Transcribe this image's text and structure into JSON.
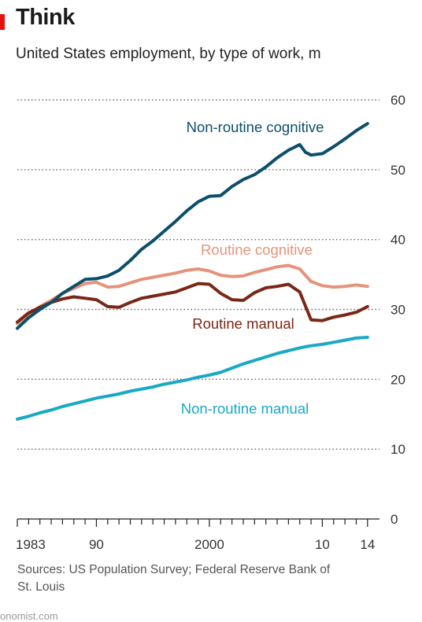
{
  "title": "Think",
  "subtitle": "United States employment, by type of work, m",
  "source": "Sources: US Population Survey; Federal Reserve Bank of St. Louis",
  "credit": "onomist.com",
  "chart_data": {
    "type": "line",
    "title": "Think",
    "subtitle": "United States employment, by type of work, m",
    "x_range": [
      1983,
      2014.5
    ],
    "ylim": [
      0,
      60
    ],
    "y_ticks": [
      {
        "value": 0,
        "label": "0"
      },
      {
        "value": 10,
        "label": "10"
      },
      {
        "value": 20,
        "label": "20"
      },
      {
        "value": 30,
        "label": "30"
      },
      {
        "value": 40,
        "label": "40"
      },
      {
        "value": 50,
        "label": "50"
      },
      {
        "value": 60,
        "label": "60"
      }
    ],
    "y_axis_side": "right",
    "grid": "dotted horizontal",
    "x_tick_labels": [
      {
        "value": 1983,
        "label": "1983"
      },
      {
        "value": 1990,
        "label": "90"
      },
      {
        "value": 2000,
        "label": "2000"
      },
      {
        "value": 2010,
        "label": "10"
      },
      {
        "value": 2014,
        "label": "14"
      }
    ],
    "series": [
      {
        "name": "Non-routine cognitive",
        "color": "#0c4f6b",
        "x": [
          1983,
          1984,
          1985,
          1986,
          1987,
          1988,
          1989,
          1990,
          1991,
          1992,
          1993,
          1994,
          1995,
          1996,
          1997,
          1998,
          1999,
          2000,
          2001,
          2002,
          2003,
          2004,
          2005,
          2006,
          2007,
          2008,
          2008.5,
          2009,
          2010,
          2011,
          2012,
          2013,
          2014
        ],
        "values": [
          27.3,
          28.8,
          30.0,
          31.0,
          32.3,
          33.3,
          34.3,
          34.4,
          34.8,
          35.6,
          37.0,
          38.6,
          39.8,
          41.2,
          42.6,
          44.1,
          45.4,
          46.2,
          46.3,
          47.6,
          48.6,
          49.3,
          50.4,
          51.7,
          52.8,
          53.6,
          52.5,
          52.1,
          52.3,
          53.3,
          54.4,
          55.6,
          56.6
        ]
      },
      {
        "name": "Routine cognitive",
        "color": "#e5937a",
        "x": [
          1983,
          1984,
          1985,
          1986,
          1987,
          1988,
          1989,
          1990,
          1991,
          1992,
          1993,
          1994,
          1995,
          1996,
          1997,
          1998,
          1999,
          2000,
          2001,
          2002,
          2003,
          2004,
          2005,
          2006,
          2007,
          2008,
          2009,
          2010,
          2011,
          2012,
          2013,
          2014
        ],
        "values": [
          28.0,
          29.3,
          30.4,
          31.3,
          32.3,
          33.0,
          33.7,
          33.9,
          33.2,
          33.3,
          33.8,
          34.3,
          34.6,
          34.9,
          35.2,
          35.6,
          35.8,
          35.5,
          34.9,
          34.7,
          34.8,
          35.3,
          35.7,
          36.1,
          36.3,
          35.8,
          34.0,
          33.4,
          33.2,
          33.3,
          33.5,
          33.3
        ]
      },
      {
        "name": "Routine manual",
        "color": "#7a2717",
        "x": [
          1983,
          1984,
          1985,
          1986,
          1987,
          1988,
          1989,
          1990,
          1991,
          1992,
          1993,
          1994,
          1995,
          1996,
          1997,
          1998,
          1999,
          2000,
          2001,
          2002,
          2003,
          2004,
          2005,
          2006,
          2007,
          2008,
          2009,
          2010,
          2011,
          2012,
          2013,
          2014
        ],
        "values": [
          28.2,
          29.5,
          30.3,
          31.0,
          31.5,
          31.8,
          31.6,
          31.4,
          30.4,
          30.3,
          31.0,
          31.6,
          31.9,
          32.2,
          32.5,
          33.1,
          33.7,
          33.6,
          32.3,
          31.4,
          31.3,
          32.4,
          33.1,
          33.3,
          33.6,
          32.5,
          28.5,
          28.4,
          28.9,
          29.2,
          29.6,
          30.4
        ]
      },
      {
        "name": "Non-routine manual",
        "color": "#1aa9c4",
        "x": [
          1983,
          1984,
          1985,
          1986,
          1987,
          1988,
          1989,
          1990,
          1991,
          1992,
          1993,
          1994,
          1995,
          1996,
          1997,
          1998,
          1999,
          2000,
          2001,
          2002,
          2003,
          2004,
          2005,
          2006,
          2007,
          2008,
          2009,
          2010,
          2011,
          2012,
          2013,
          2014
        ],
        "values": [
          14.3,
          14.7,
          15.2,
          15.6,
          16.1,
          16.5,
          16.9,
          17.3,
          17.6,
          17.9,
          18.3,
          18.6,
          18.9,
          19.3,
          19.6,
          19.9,
          20.3,
          20.6,
          21.0,
          21.6,
          22.2,
          22.7,
          23.2,
          23.7,
          24.1,
          24.5,
          24.8,
          25.0,
          25.3,
          25.6,
          25.9,
          26.0
        ]
      }
    ],
    "annotations": [
      {
        "text": "Non-routine cognitive",
        "series": "Non-routine cognitive"
      },
      {
        "text": "Routine cognitive",
        "series": "Routine cognitive"
      },
      {
        "text": "Routine manual",
        "series": "Routine manual"
      },
      {
        "text": "Non-routine manual",
        "series": "Non-routine manual"
      }
    ]
  }
}
